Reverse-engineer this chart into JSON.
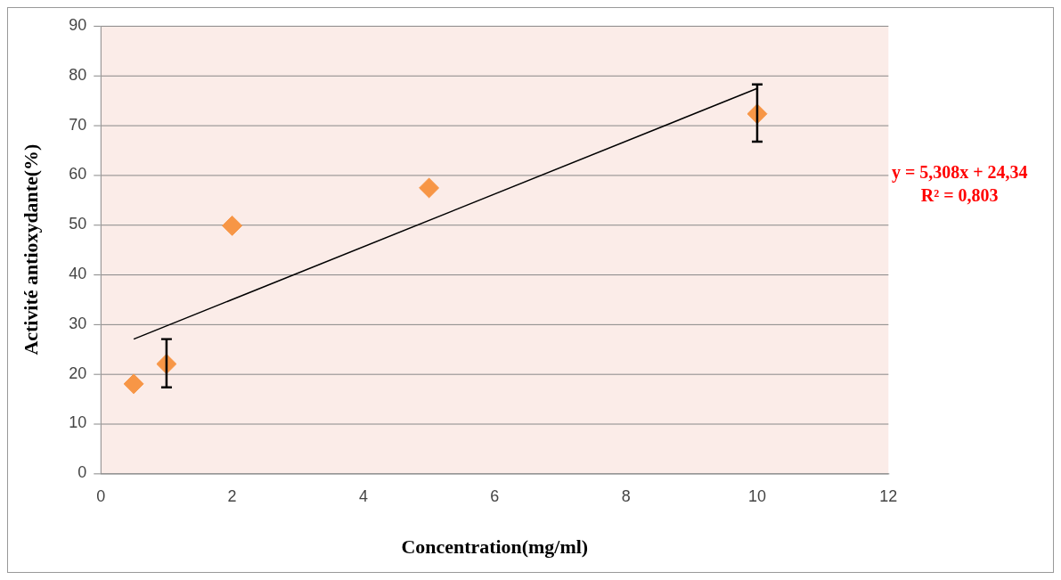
{
  "chart_data": {
    "type": "scatter",
    "xlabel": "Concentration(mg/ml)",
    "ylabel": "Activité antioxydante(%)",
    "xlim": [
      0,
      12
    ],
    "xticks": [
      0,
      2,
      4,
      6,
      8,
      10,
      12
    ],
    "ylim": [
      0,
      90
    ],
    "yticks": [
      0,
      10,
      20,
      30,
      40,
      50,
      60,
      70,
      80,
      90
    ],
    "grid": "y",
    "marker": "diamond",
    "legend": false,
    "series": [
      {
        "color": "#f79646",
        "x": [
          0.5,
          1,
          2,
          5,
          10
        ],
        "values": [
          18,
          22,
          49.8,
          57.4,
          72.3
        ],
        "errors": [
          null,
          [
            17.3,
            27
          ],
          null,
          null,
          [
            66.7,
            78.2
          ]
        ]
      },
      {
        "type": "line",
        "color": "#000000",
        "marker": "none",
        "x": [
          0.5,
          10
        ],
        "values": [
          27,
          77.4
        ]
      }
    ],
    "annotations": [
      "y = 5,308x + 24,34",
      "R² = 0,803"
    ]
  }
}
